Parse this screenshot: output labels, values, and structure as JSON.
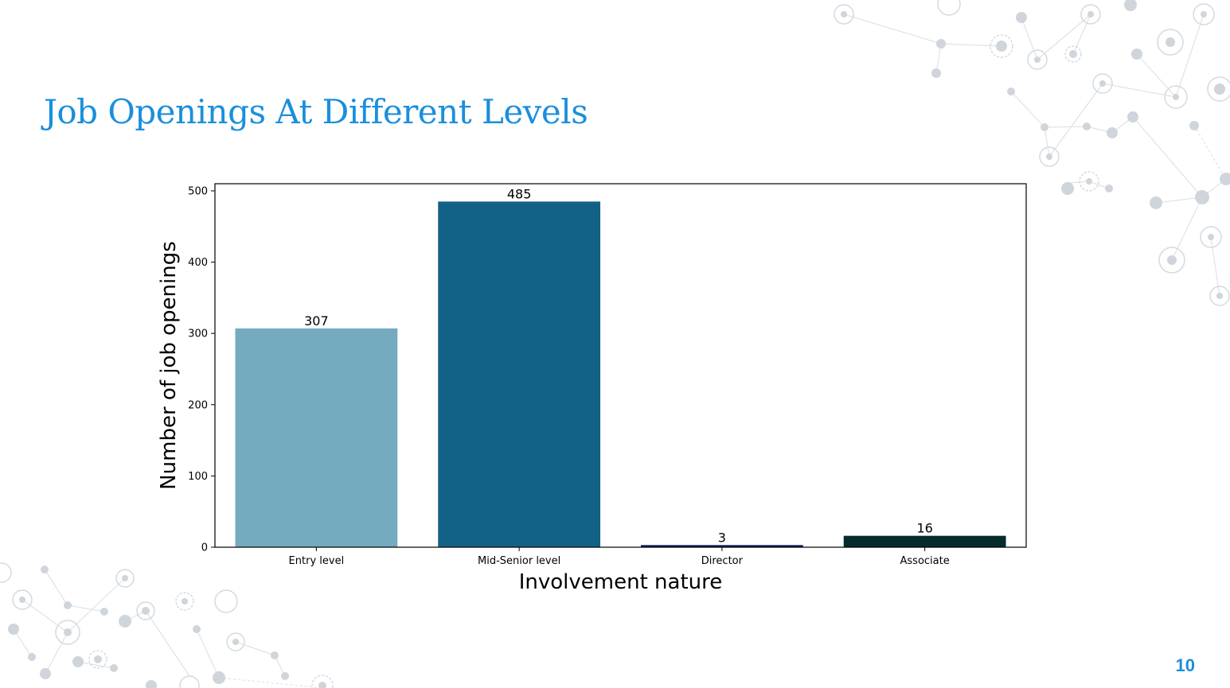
{
  "slide": {
    "title": "Job Openings At Different Levels",
    "page_number": "10"
  },
  "colors": {
    "title": "#1a8fdc",
    "decoration": "#c8ced3"
  },
  "chart_data": {
    "type": "bar",
    "categories": [
      "Entry level",
      "Mid-Senior level",
      "Director",
      "Associate"
    ],
    "values": [
      307,
      485,
      3,
      16
    ],
    "data_labels": [
      "307",
      "485",
      "3",
      "16"
    ],
    "bar_colors": [
      "#74abbf",
      "#136186",
      "#0f1f55",
      "#052b2d"
    ],
    "xlabel": "Involvement nature",
    "ylabel": "Number of job openings",
    "ylim": [
      0,
      510
    ],
    "yticks": [
      0,
      100,
      200,
      300,
      400,
      500
    ],
    "grid": false,
    "legend": "none"
  }
}
